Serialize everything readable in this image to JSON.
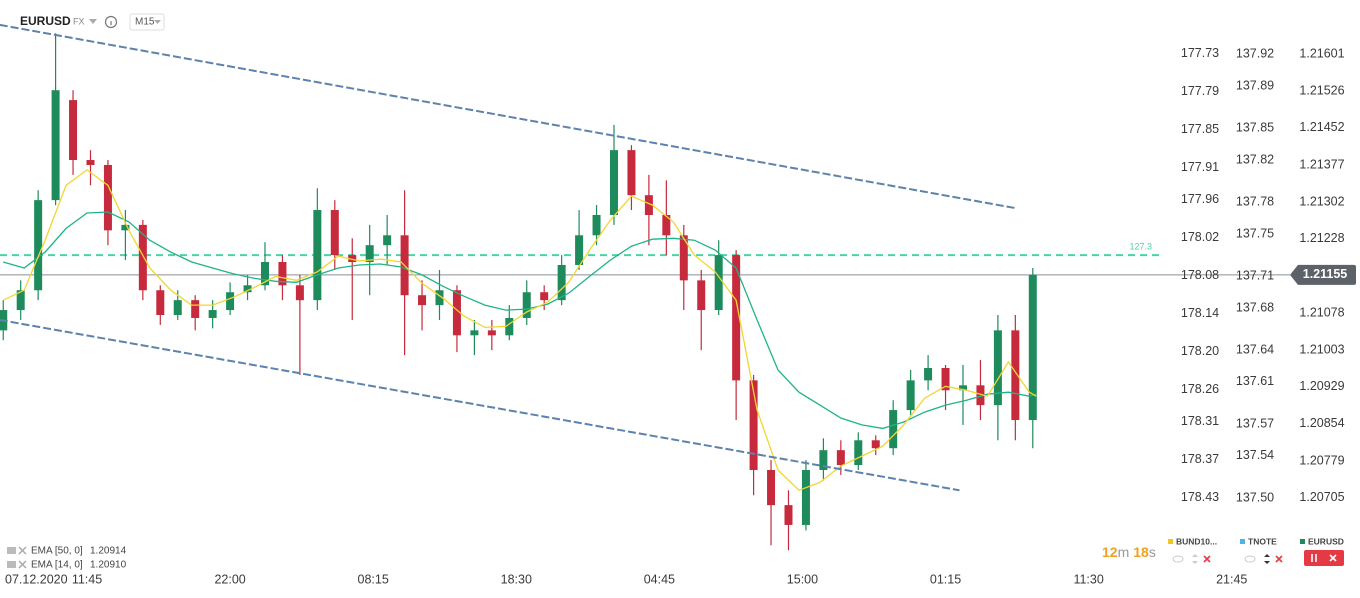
{
  "chart_data": {
    "type": "candlestick",
    "header": {
      "symbol": "EURUSD",
      "market": "FX",
      "interval": "M15"
    },
    "date": "07.12.2020",
    "xlim": [
      -24.93,
      307.45
    ],
    "xticks": [
      {
        "value": 0,
        "label": "11:45"
      },
      {
        "value": 41,
        "label": "22:00"
      },
      {
        "value": 82,
        "label": "08:15"
      },
      {
        "value": 123,
        "label": "18:30"
      },
      {
        "value": 164,
        "label": "04:45"
      },
      {
        "value": 205,
        "label": "15:00"
      },
      {
        "value": 246,
        "label": "01:15"
      },
      {
        "value": 287,
        "label": "11:30"
      },
      {
        "value": 328,
        "label": "21:45"
      }
    ],
    "ylim": [
      1.20559,
      1.2169
    ],
    "yticks": [
      1.21601,
      1.21526,
      1.21452,
      1.21377,
      1.21302,
      1.21228,
      1.21078,
      1.21003,
      1.20929,
      1.20854,
      1.20779,
      1.20705
    ],
    "y_axes": [
      {
        "ylim": [
          178.544,
          177.661
        ],
        "yticks": [
          177.73,
          177.79,
          177.85,
          177.91,
          177.96,
          178.02,
          178.08,
          178.14,
          {
            "value": 178.2,
            "label": "178.20"
          },
          178.26,
          178.31,
          178.37,
          178.43
        ]
      },
      {
        "ylim": [
          137.432,
          137.962
        ],
        "yticks": [
          137.92,
          137.89,
          137.85,
          137.82,
          137.78,
          137.75,
          137.71,
          137.68,
          137.64,
          137.61,
          137.57,
          137.54,
          {
            "value": 137.5,
            "label": "137.50"
          }
        ]
      }
    ],
    "up_color": "#1e8b5c",
    "down_color": "#c62a3c",
    "x": [
      -24,
      -19,
      -14,
      -9,
      -4,
      1,
      6,
      11,
      16,
      21,
      26,
      31,
      36,
      41,
      46,
      51,
      56,
      61,
      66,
      71,
      76,
      81,
      86,
      91,
      96,
      101,
      106,
      111,
      116,
      121,
      126,
      131,
      136,
      141,
      146,
      151,
      156,
      161,
      166,
      171,
      176,
      181,
      186,
      191,
      196,
      201,
      206,
      211,
      216,
      221,
      226,
      231,
      236,
      241,
      246,
      251,
      256,
      261,
      266,
      271
    ],
    "open": [
      1.21043,
      1.21084,
      1.21124,
      1.21306,
      1.21508,
      1.21387,
      1.21377,
      1.21245,
      1.21256,
      1.21124,
      1.21074,
      1.21104,
      1.21068,
      1.21084,
      1.2112,
      1.21134,
      1.21181,
      1.21134,
      1.21104,
      1.21286,
      1.21195,
      1.21181,
      1.21215,
      1.21235,
      1.21114,
      1.21094,
      1.21124,
      1.21033,
      1.21043,
      1.21033,
      1.21068,
      1.2112,
      1.21104,
      1.21175,
      1.21235,
      1.21276,
      1.21407,
      1.21316,
      1.21276,
      1.21235,
      1.21144,
      1.21084,
      1.21195,
      1.20942,
      1.20761,
      1.2069,
      1.2065,
      1.20761,
      1.20801,
      1.20771,
      1.20821,
      1.20805,
      1.20882,
      1.20942,
      1.20967,
      1.20922,
      1.20932,
      1.20892,
      1.21043,
      1.20862
    ],
    "high": [
      1.21104,
      1.21144,
      1.21326,
      1.21643,
      1.21528,
      1.21407,
      1.21387,
      1.21286,
      1.21266,
      1.21134,
      1.21124,
      1.21114,
      1.21104,
      1.2114,
      1.21155,
      1.21221,
      1.21195,
      1.21155,
      1.2133,
      1.21306,
      1.21229,
      1.21256,
      1.21276,
      1.21326,
      1.21144,
      1.21165,
      1.21134,
      1.21064,
      1.21064,
      1.21094,
      1.21144,
      1.21134,
      1.21195,
      1.21286,
      1.21296,
      1.21458,
      1.21417,
      1.21357,
      1.21346,
      1.21256,
      1.21165,
      1.21225,
      1.21205,
      1.20953,
      1.20781,
      1.2072,
      1.20781,
      1.20825,
      1.20821,
      1.20837,
      1.20831,
      1.20902,
      1.20963,
      1.20993,
      1.20973,
      1.20973,
      1.20983,
      1.21074,
      1.21074,
      1.21169
    ],
    "low": [
      1.21023,
      1.21064,
      1.21104,
      1.21296,
      1.21357,
      1.21336,
      1.21215,
      1.21185,
      1.21104,
      1.21054,
      1.21064,
      1.21043,
      1.21047,
      1.21074,
      1.21104,
      1.21124,
      1.21104,
      1.20953,
      1.21084,
      1.21165,
      1.21064,
      1.21114,
      1.21175,
      1.20993,
      1.21043,
      1.21064,
      1.20999,
      1.20993,
      1.21003,
      1.21023,
      1.21054,
      1.21084,
      1.21094,
      1.21165,
      1.21215,
      1.21256,
      1.21286,
      1.21215,
      1.21195,
      1.21084,
      1.21003,
      1.21074,
      1.20862,
      1.2071,
      1.20609,
      1.20599,
      1.20639,
      1.2074,
      1.20751,
      1.20761,
      1.20791,
      1.20791,
      1.20872,
      1.20922,
      1.20882,
      1.20852,
      1.20862,
      1.20821,
      1.20821,
      1.20805
    ],
    "close": [
      1.21084,
      1.21124,
      1.21306,
      1.21528,
      1.21387,
      1.21377,
      1.21245,
      1.21256,
      1.21124,
      1.21074,
      1.21104,
      1.21068,
      1.21084,
      1.2112,
      1.21134,
      1.21181,
      1.21134,
      1.21104,
      1.21286,
      1.21195,
      1.21181,
      1.21215,
      1.21235,
      1.21114,
      1.21094,
      1.21124,
      1.21033,
      1.21043,
      1.21033,
      1.21068,
      1.2112,
      1.21104,
      1.21175,
      1.21235,
      1.21276,
      1.21407,
      1.21316,
      1.21276,
      1.21235,
      1.21144,
      1.21084,
      1.21195,
      1.20942,
      1.20761,
      1.2069,
      1.2065,
      1.20761,
      1.20801,
      1.20771,
      1.20821,
      1.20805,
      1.20882,
      1.20942,
      1.20967,
      1.20922,
      1.20932,
      1.20892,
      1.21043,
      1.20862,
      1.21155
    ],
    "lines": [
      {
        "name": "EMA [50, 0]",
        "last_label": "1.20914",
        "color": "#1fb488",
        "x": [
          -24,
          -18,
          -12,
          -6,
          0,
          6,
          12,
          18,
          24,
          30,
          36,
          42,
          48,
          54,
          60,
          66,
          72,
          78,
          84,
          90,
          96,
          102,
          108,
          114,
          120,
          126,
          132,
          138,
          144,
          150,
          156,
          162,
          168,
          174,
          180,
          186,
          192,
          198,
          204,
          210,
          216,
          222,
          228,
          234,
          240,
          246,
          252,
          258,
          264,
          270,
          272
        ],
        "values": [
          1.21181,
          1.21169,
          1.21201,
          1.21249,
          1.2128,
          1.21282,
          1.21262,
          1.21225,
          1.21201,
          1.21181,
          1.21169,
          1.21157,
          1.21148,
          1.21142,
          1.2114,
          1.21155,
          1.21169,
          1.21175,
          1.21177,
          1.21171,
          1.21155,
          1.21132,
          1.21112,
          1.21094,
          1.21084,
          1.21086,
          1.21096,
          1.21118,
          1.21152,
          1.21185,
          1.21213,
          1.21227,
          1.21229,
          1.21225,
          1.21205,
          1.21169,
          1.21064,
          1.20963,
          1.20918,
          1.20892,
          1.20866,
          1.20852,
          1.20845,
          1.20858,
          1.20878,
          1.20892,
          1.20902,
          1.20914,
          1.20918,
          1.2091,
          1.20914
        ]
      },
      {
        "name": "EMA [14, 0]",
        "last_label": "1.20910",
        "color": "#f2d630",
        "x": [
          -24,
          -18,
          -12,
          -6,
          0,
          6,
          12,
          18,
          24,
          30,
          36,
          42,
          48,
          54,
          60,
          66,
          72,
          78,
          84,
          90,
          96,
          102,
          108,
          114,
          120,
          126,
          132,
          138,
          144,
          150,
          156,
          162,
          168,
          174,
          180,
          186,
          192,
          198,
          204,
          210,
          216,
          222,
          228,
          234,
          240,
          246,
          252,
          258,
          264,
          270,
          272
        ],
        "values": [
          1.21104,
          1.21124,
          1.21225,
          1.21336,
          1.21367,
          1.21336,
          1.21245,
          1.21169,
          1.21124,
          1.21094,
          1.21094,
          1.2111,
          1.2113,
          1.21152,
          1.21144,
          1.21161,
          1.21193,
          1.21183,
          1.21187,
          1.21181,
          1.21138,
          1.21108,
          1.21072,
          1.21049,
          1.21051,
          1.2108,
          1.211,
          1.2114,
          1.21205,
          1.21266,
          1.21314,
          1.21296,
          1.21262,
          1.21195,
          1.21161,
          1.21104,
          1.20882,
          1.20761,
          1.2072,
          1.20736,
          1.20769,
          1.20789,
          1.20809,
          1.20852,
          1.20906,
          1.2093,
          1.20922,
          1.2091,
          1.20979,
          1.20918,
          1.2091
        ]
      }
    ],
    "trendlines": [
      {
        "color": "#5d82ab",
        "x": [
          -25,
          266
        ],
        "values": [
          1.2166,
          1.2129
        ]
      },
      {
        "color": "#5d82ab",
        "x": [
          -25,
          250
        ],
        "values": [
          1.21064,
          1.2072
        ]
      }
    ],
    "levels": [
      {
        "value": 1.21195,
        "label": "127.3",
        "color": "#49d4a6"
      }
    ],
    "price_line_color": "#8a8f96",
    "countdown": {
      "minutes": 12,
      "minutes_unit": "m",
      "seconds": 18,
      "seconds_unit": "s"
    },
    "instruments": [
      {
        "name": "BUND10...",
        "color": "#f3c623"
      },
      {
        "name": "TNOTE",
        "color": "#4fb3e8"
      },
      {
        "name": "EURUSD",
        "color": "#1e8b5c"
      }
    ]
  }
}
